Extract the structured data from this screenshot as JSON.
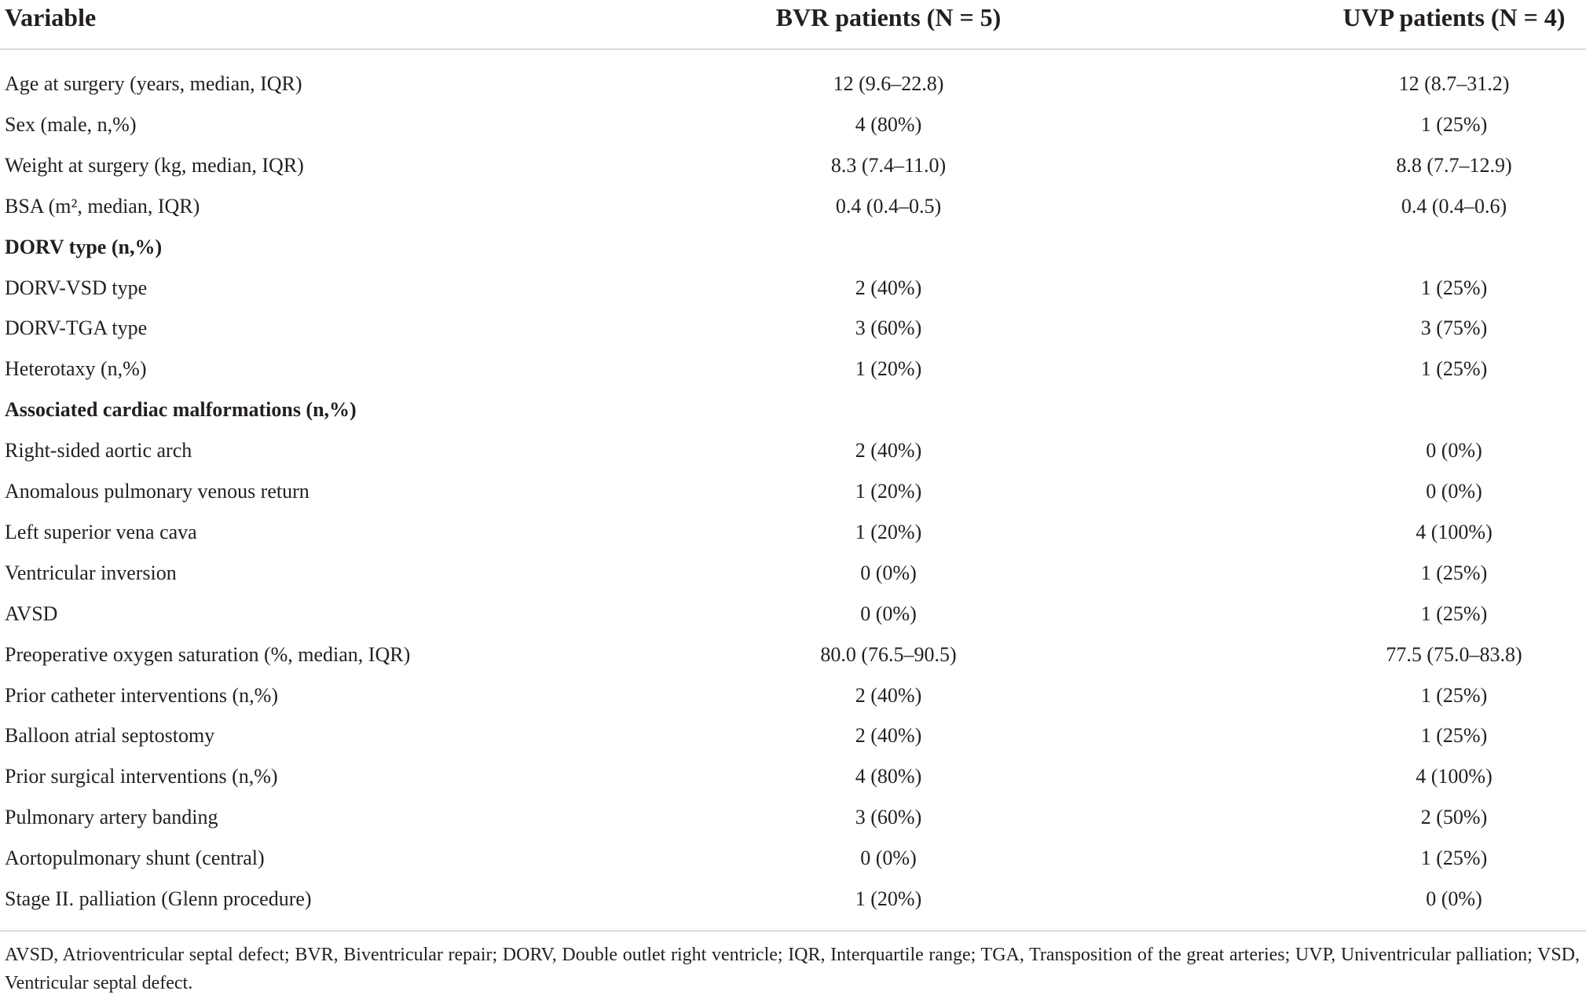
{
  "table": {
    "header": [
      "Variable",
      "BVR patients (N = 5)",
      "UVP patients (N = 4)"
    ],
    "rows": [
      {
        "label": "Age at surgery (years, median, IQR)",
        "bvr": "12 (9.6–22.8)",
        "uvp": "12 (8.7–31.2)"
      },
      {
        "label": "Sex (male, n,%)",
        "bvr": "4 (80%)",
        "uvp": "1 (25%)"
      },
      {
        "label": "Weight at surgery (kg, median, IQR)",
        "bvr": "8.3 (7.4–11.0)",
        "uvp": "8.8 (7.7–12.9)"
      },
      {
        "label": "BSA (m², median, IQR)",
        "bvr": "0.4 (0.4–0.5)",
        "uvp": "0.4 (0.4–0.6)"
      },
      {
        "label": "DORV type (n,%)",
        "section": true
      },
      {
        "label": "DORV-VSD type",
        "bvr": "2 (40%)",
        "uvp": "1 (25%)"
      },
      {
        "label": "DORV-TGA type",
        "bvr": "3 (60%)",
        "uvp": "3 (75%)"
      },
      {
        "label": "Heterotaxy (n,%)",
        "bvr": "1 (20%)",
        "uvp": "1 (25%)"
      },
      {
        "label": "Associated cardiac malformations (n,%)",
        "section": true
      },
      {
        "label": "Right-sided aortic arch",
        "bvr": "2 (40%)",
        "uvp": "0 (0%)"
      },
      {
        "label": "Anomalous pulmonary venous return",
        "bvr": "1 (20%)",
        "uvp": "0 (0%)"
      },
      {
        "label": "Left superior vena cava",
        "bvr": "1 (20%)",
        "uvp": "4 (100%)"
      },
      {
        "label": "Ventricular inversion",
        "bvr": "0 (0%)",
        "uvp": "1 (25%)"
      },
      {
        "label": "AVSD",
        "bvr": "0 (0%)",
        "uvp": "1 (25%)"
      },
      {
        "label": "Preoperative oxygen saturation (%, median, IQR)",
        "bvr": "80.0 (76.5–90.5)",
        "uvp": "77.5 (75.0–83.8)"
      },
      {
        "label": "Prior catheter interventions (n,%)",
        "bvr": "2 (40%)",
        "uvp": "1 (25%)"
      },
      {
        "label": "Balloon atrial septostomy",
        "bvr": "2 (40%)",
        "uvp": "1 (25%)"
      },
      {
        "label": "Prior surgical interventions (n,%)",
        "bvr": "4 (80%)",
        "uvp": "4 (100%)"
      },
      {
        "label": "Pulmonary artery banding",
        "bvr": "3 (60%)",
        "uvp": "2 (50%)"
      },
      {
        "label": "Aortopulmonary shunt (central)",
        "bvr": "0 (0%)",
        "uvp": "1 (25%)"
      },
      {
        "label": "Stage II. palliation (Glenn procedure)",
        "bvr": "1 (20%)",
        "uvp": "0 (0%)"
      }
    ],
    "footnote": "AVSD, Atrioventricular septal defect; BVR, Biventricular repair; DORV, Double outlet right ventricle; IQR, Interquartile range; TGA, Transposition of the great arteries; UVP, Univentricular palliation; VSD, Ventricular septal defect."
  }
}
